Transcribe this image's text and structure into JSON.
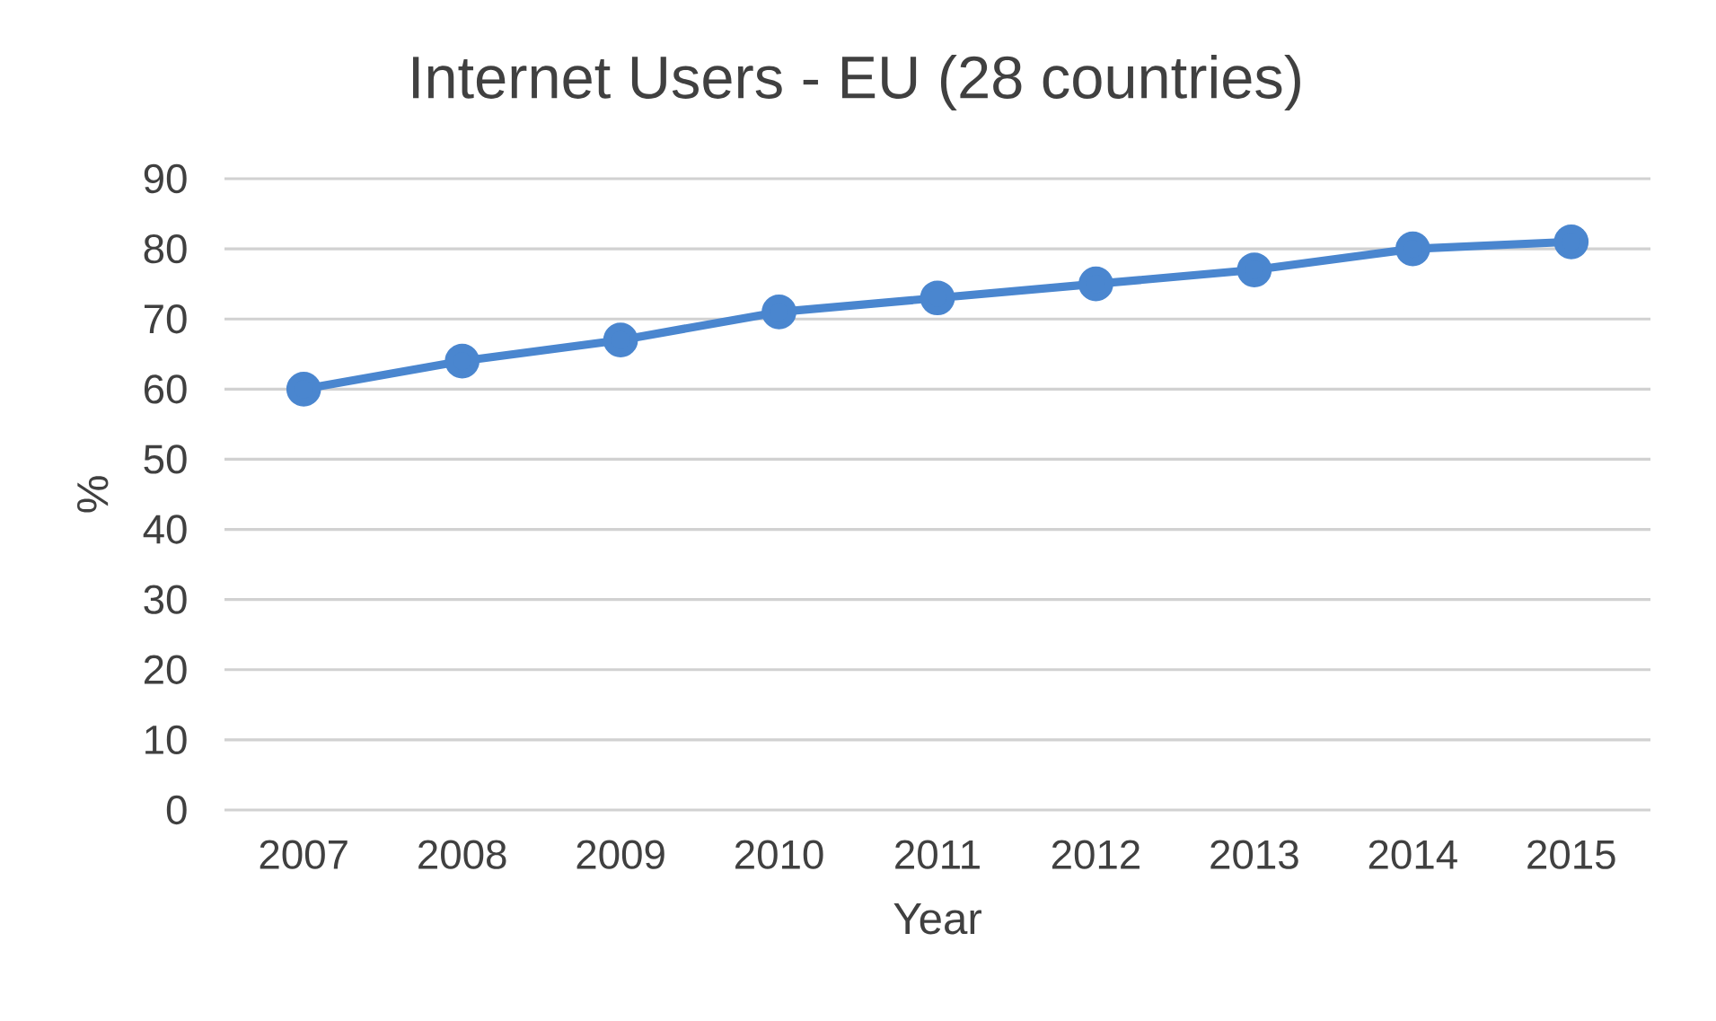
{
  "chart_data": {
    "type": "line",
    "title": "Internet Users - EU (28 countries)",
    "xlabel": "Year",
    "ylabel": "%",
    "categories": [
      "2007",
      "2008",
      "2009",
      "2010",
      "2011",
      "2012",
      "2013",
      "2014",
      "2015"
    ],
    "values": [
      60,
      64,
      67,
      71,
      73,
      75,
      77,
      80,
      81
    ],
    "color": "#4a86cf",
    "ylim": [
      0,
      90
    ],
    "yticks": [
      0,
      10,
      20,
      30,
      40,
      50,
      60,
      70,
      80,
      90
    ],
    "grid": "y",
    "marker": "circle"
  }
}
